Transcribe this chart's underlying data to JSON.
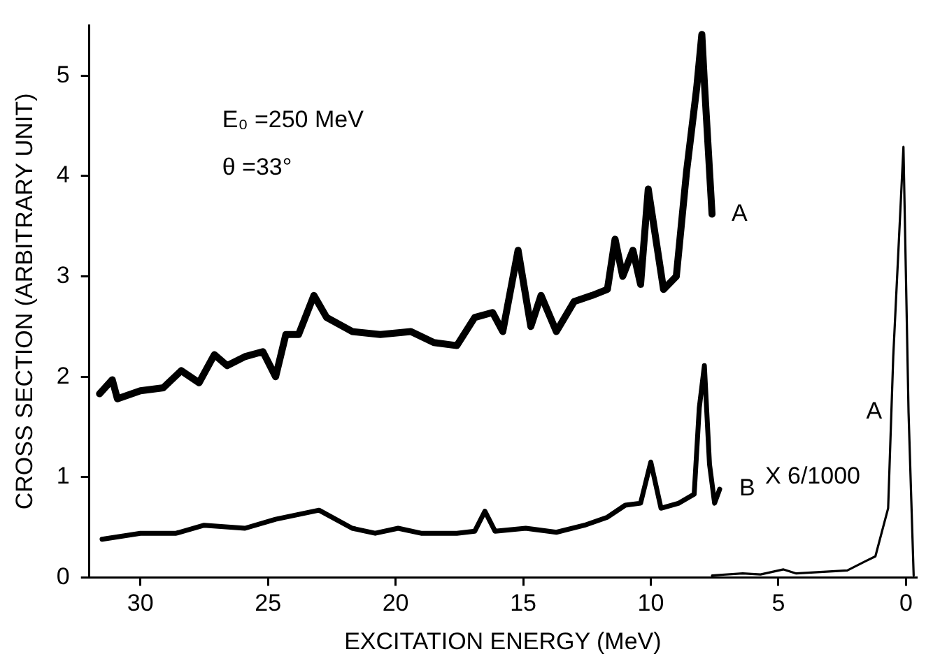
{
  "chart_data": {
    "type": "line",
    "xlabel": "EXCITATION ENERGY (MeV)",
    "ylabel": "CROSS SECTION (ARBITRARY UNIT)",
    "xlim": [
      32,
      -0.4
    ],
    "xticks": [
      30,
      25,
      20,
      15,
      10,
      5,
      0
    ],
    "ylim": [
      0,
      5.5
    ],
    "yticks": [
      0,
      1,
      2,
      3,
      4,
      5
    ],
    "grid": false,
    "legend": false,
    "marker": "none",
    "line_style": "solid",
    "annotations": [
      "E₀ =250 MeV",
      "θ =33°",
      "X 6/1000"
    ],
    "series": [
      {
        "name": "A",
        "color": "#000000",
        "x": [
          31.6,
          31.1,
          30.9,
          30,
          29.1,
          28.4,
          27.7,
          27.1,
          26.6,
          25.9,
          25.2,
          24.7,
          24.3,
          23.8,
          23.2,
          22.7,
          21.7,
          20.6,
          19.4,
          18.5,
          17.6,
          16.9,
          16.2,
          15.8,
          15.2,
          14.7,
          14.3,
          13.7,
          13.0,
          12.3,
          11.7,
          11.4,
          11.1,
          10.7,
          10.4,
          10.1,
          9.5,
          9.0,
          8.6,
          8.2,
          8.0,
          7.9,
          7.6
        ],
        "values": [
          1.83,
          1.97,
          1.78,
          1.86,
          1.89,
          2.06,
          1.94,
          2.22,
          2.11,
          2.2,
          2.25,
          2.0,
          2.42,
          2.42,
          2.81,
          2.59,
          2.45,
          2.42,
          2.45,
          2.34,
          2.31,
          2.59,
          2.64,
          2.45,
          3.26,
          2.5,
          2.81,
          2.45,
          2.75,
          2.81,
          2.87,
          3.37,
          3.0,
          3.26,
          2.92,
          3.87,
          2.87,
          3.0,
          4.04,
          4.88,
          5.41,
          4.93,
          3.62
        ]
      },
      {
        "name": "B",
        "color": "#000000",
        "x": [
          31.5,
          30,
          28.6,
          27.5,
          25.9,
          24.7,
          23.0,
          21.7,
          20.8,
          19.9,
          19.0,
          17.6,
          16.9,
          16.5,
          16.1,
          14.9,
          13.7,
          12.6,
          11.7,
          11.0,
          10.4,
          10.0,
          9.6,
          8.9,
          8.3,
          8.1,
          7.9,
          7.7,
          7.5,
          7.3
        ],
        "values": [
          0.38,
          0.44,
          0.44,
          0.52,
          0.49,
          0.58,
          0.67,
          0.49,
          0.44,
          0.49,
          0.44,
          0.44,
          0.46,
          0.66,
          0.46,
          0.49,
          0.45,
          0.52,
          0.6,
          0.72,
          0.74,
          1.15,
          0.69,
          0.74,
          0.83,
          1.69,
          2.11,
          1.13,
          0.74,
          0.88
        ]
      },
      {
        "name": "A",
        "color": "#000000",
        "x": [
          7.6,
          6.4,
          5.7,
          4.8,
          4.3,
          2.3,
          1.6,
          1.2,
          0.7,
          0.5,
          0.1,
          -0.1,
          -0.3
        ],
        "values": [
          0.02,
          0.04,
          0.03,
          0.08,
          0.04,
          0.07,
          0.16,
          0.21,
          0.69,
          2.2,
          4.29,
          1.64,
          0.02
        ]
      }
    ]
  }
}
